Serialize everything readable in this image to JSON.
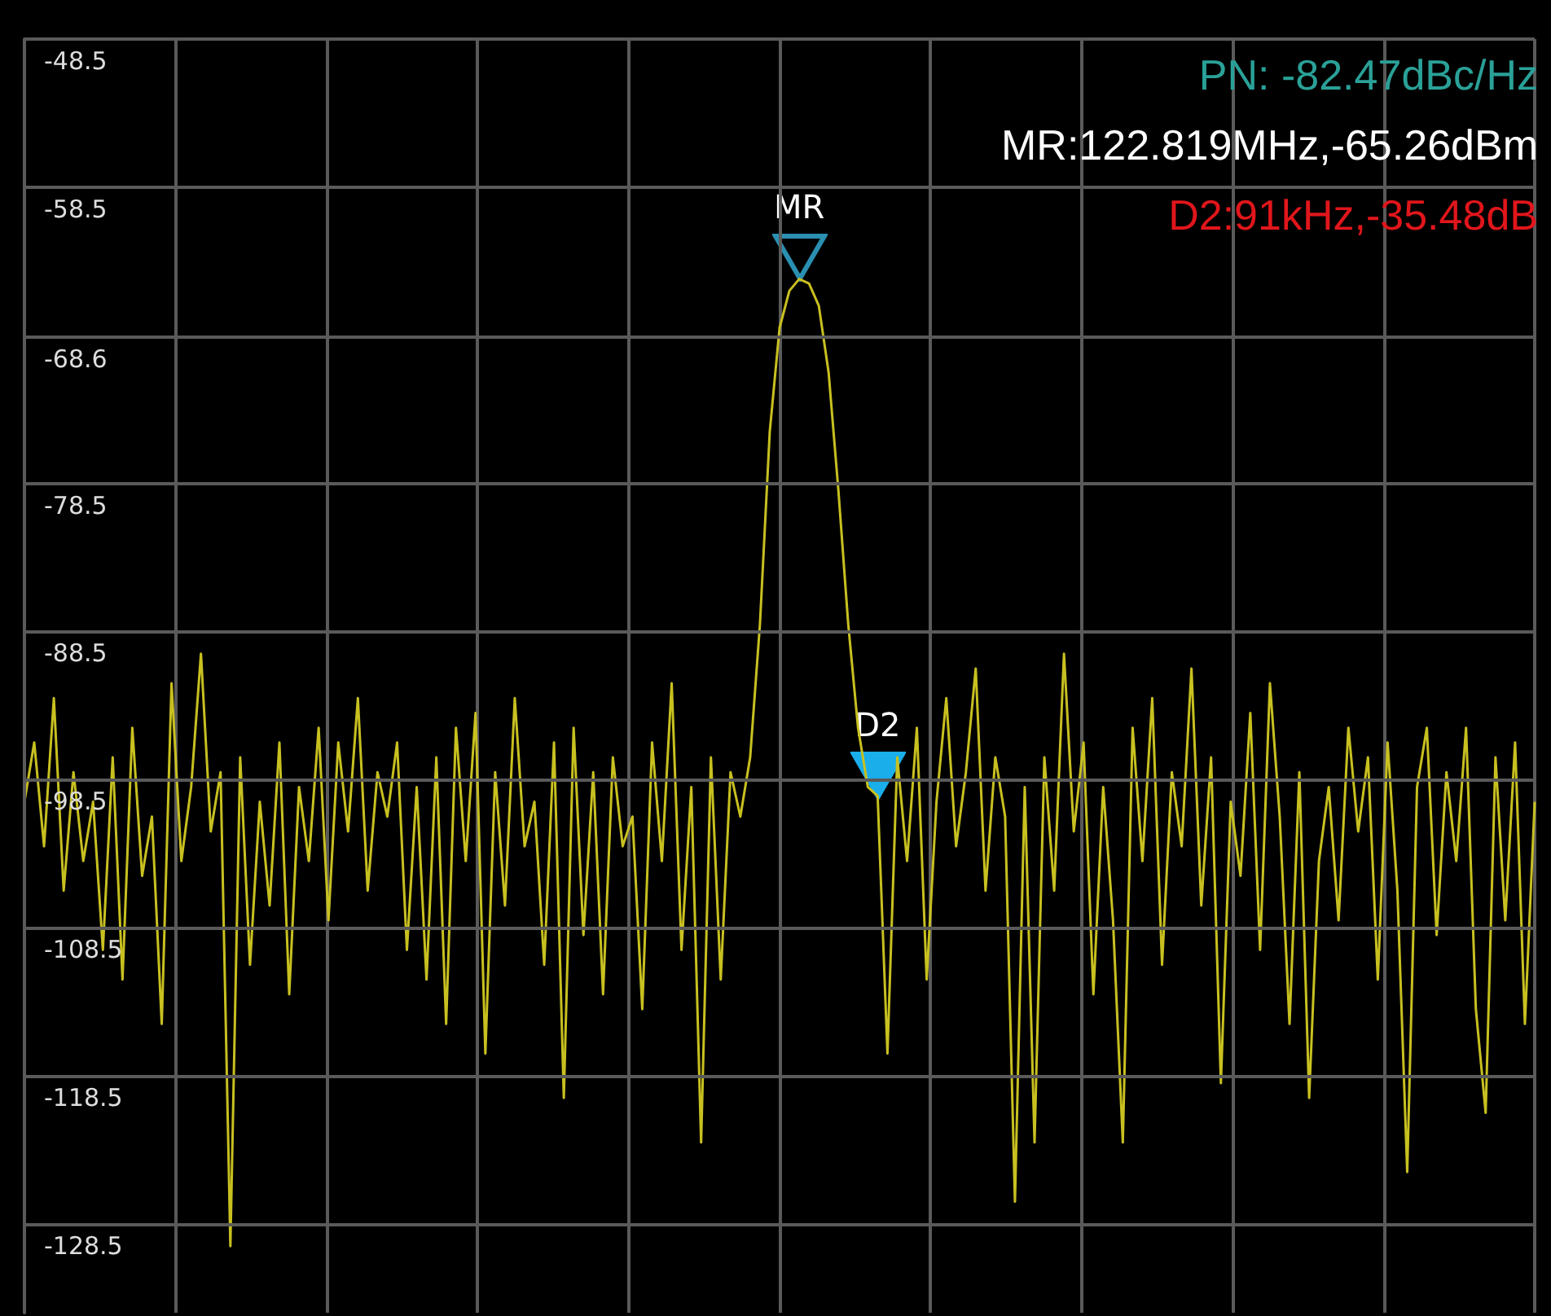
{
  "chart_data": {
    "type": "line",
    "categories": [
      null,
      null,
      null,
      null,
      null,
      null,
      null,
      null,
      null,
      null,
      null,
      null,
      null,
      null,
      null,
      null,
      null,
      null,
      null,
      null,
      null,
      null,
      null,
      null,
      null,
      null,
      null,
      null,
      null,
      null,
      null,
      null,
      null,
      null,
      null,
      null,
      null,
      null,
      null,
      null,
      null,
      null,
      null,
      null,
      null,
      null,
      null,
      null,
      null,
      null,
      null,
      null,
      null,
      null,
      null,
      null,
      null,
      null,
      null,
      null,
      null,
      null,
      null,
      null,
      null,
      null,
      null,
      null,
      null,
      null,
      null,
      null,
      null,
      null,
      null,
      null,
      null,
      null,
      null,
      null,
      null,
      null,
      null,
      null,
      null,
      null,
      null,
      null,
      null,
      null,
      null,
      null,
      null,
      null,
      null,
      null,
      null,
      null,
      null,
      null,
      null,
      null,
      null,
      null,
      null,
      null,
      null,
      null,
      null,
      null,
      null,
      null,
      null,
      null,
      null,
      null,
      null,
      null,
      null,
      null,
      null,
      null,
      null,
      null,
      null,
      null,
      null,
      null,
      null,
      null,
      null,
      null,
      null,
      null,
      null,
      null,
      null,
      null,
      null,
      null,
      null,
      null,
      null,
      null,
      null,
      null,
      null,
      null,
      null,
      null,
      null,
      null,
      null,
      null,
      null
    ],
    "series": [
      {
        "color": "#c8c020",
        "values": [
          -100,
          -96,
          -103,
          -93,
          -106,
          -98,
          -104,
          -100,
          -110,
          -97,
          -112,
          -95,
          -105,
          -101,
          -115,
          -92,
          -104,
          -99,
          -90,
          -102,
          -98,
          -130,
          -97,
          -111,
          -100,
          -107,
          -96,
          -113,
          -99,
          -104,
          -95,
          -108,
          -96,
          -102,
          -93,
          -106,
          -98,
          -101,
          -96,
          -110,
          -99,
          -112,
          -97,
          -115,
          -95,
          -104,
          -94,
          -117,
          -98,
          -107,
          -93,
          -103,
          -100,
          -111,
          -96,
          -120,
          -95,
          -109,
          -98,
          -113,
          -97,
          -103,
          -101,
          -114,
          -96,
          -104,
          -92,
          -110,
          -99,
          -123,
          -97,
          -112,
          -98,
          -101,
          -97,
          -88,
          -75,
          -68,
          -65.5,
          -64.7,
          -65,
          -66.5,
          -71,
          -79,
          -88,
          -95,
          -99,
          -99.6,
          -117,
          -97,
          -104,
          -95,
          -112,
          -100,
          -93,
          -103,
          -98,
          -91,
          -106,
          -97,
          -101,
          -127,
          -99,
          -123,
          -97,
          -106,
          -90,
          -102,
          -96,
          -113,
          -99,
          -108,
          -123,
          -95,
          -104,
          -93,
          -111,
          -98,
          -103,
          -91,
          -107,
          -97,
          -119,
          -100,
          -105,
          -94,
          -110,
          -92,
          -101,
          -115,
          -98,
          -120,
          -104,
          -99,
          -108,
          -95,
          -102,
          -97,
          -112,
          -96,
          -106,
          -125,
          -99,
          -95,
          -109,
          -98,
          -104,
          -95,
          -114,
          -121,
          -97,
          -108,
          -96,
          -115,
          -100
        ]
      }
    ],
    "ylim": [
      -134.5,
      -48.5
    ],
    "yticks": [
      -48.5,
      -58.5,
      -68.6,
      -78.5,
      -88.5,
      -98.5,
      -108.5,
      -118.5,
      -128.5
    ],
    "grid": true,
    "tick_labels": "y",
    "line_style": "solid",
    "annotations": [
      {
        "text": "MR",
        "y": -64.7
      },
      {
        "text": "D2",
        "y": -99.6
      },
      "PN: -82.47dBc/Hz",
      "MR:122.819MHz,-65.26dBm",
      "D2:91kHz,-35.48dB"
    ]
  }
}
